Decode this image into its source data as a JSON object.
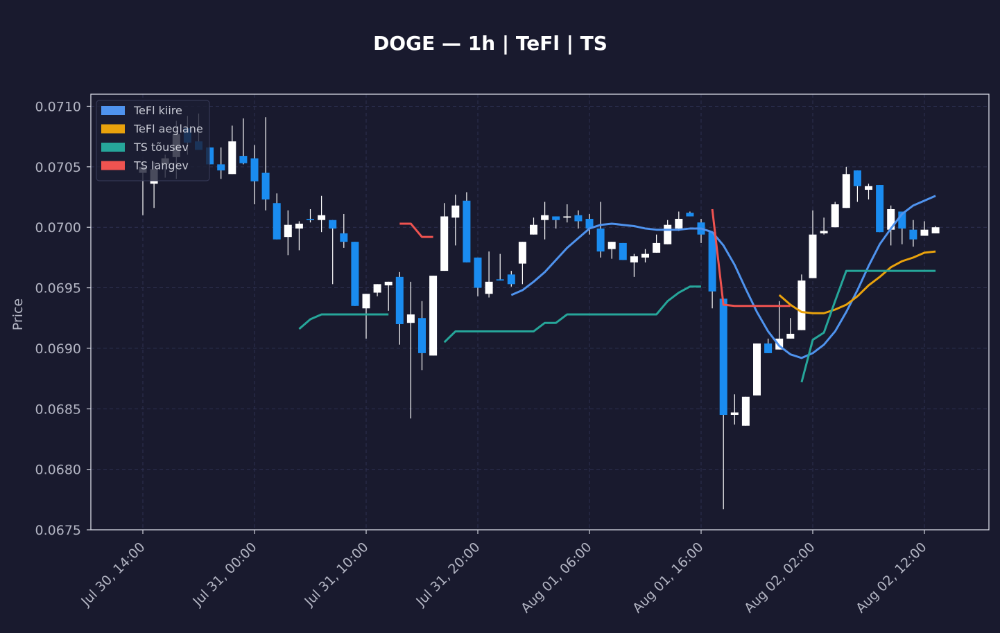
{
  "chart_data": {
    "type": "candlestick",
    "title": "DOGE — 1h  |  TeFl  |  TS",
    "ylabel": "Price",
    "categories": [
      "Jul 30, 14:00",
      null,
      null,
      null,
      null,
      null,
      null,
      null,
      null,
      null,
      "Jul 31, 00:00",
      null,
      null,
      null,
      null,
      null,
      null,
      null,
      null,
      null,
      "Jul 31, 10:00",
      null,
      null,
      null,
      null,
      null,
      null,
      null,
      null,
      null,
      "Jul 31, 20:00",
      null,
      null,
      null,
      null,
      null,
      null,
      null,
      null,
      null,
      "Aug 01, 06:00",
      null,
      null,
      null,
      null,
      null,
      null,
      null,
      null,
      null,
      "Aug 01, 16:00",
      null,
      null,
      null,
      null,
      null,
      null,
      null,
      null,
      null,
      "Aug 02, 02:00",
      null,
      null,
      null,
      null,
      null,
      null,
      null,
      null,
      null,
      "Aug 02, 12:00",
      null
    ],
    "open": [
      0.07045,
      0.07036,
      0.07052,
      0.07058,
      0.07082,
      0.07071,
      0.07066,
      0.07052,
      0.07044,
      0.07059,
      0.07057,
      0.07045,
      0.0702,
      0.06992,
      0.06999,
      0.07007,
      0.07006,
      0.07006,
      0.06995,
      0.06988,
      0.06933,
      0.06946,
      0.06952,
      0.06959,
      0.06921,
      0.06925,
      0.06894,
      0.06964,
      0.07008,
      0.07022,
      0.06975,
      0.06945,
      0.06957,
      0.06961,
      0.0697,
      0.06994,
      0.07006,
      0.07009,
      0.07008,
      0.0701,
      0.07007,
      0.06999,
      0.06982,
      0.06987,
      0.06971,
      0.06975,
      0.06979,
      0.06986,
      0.06999,
      0.07012,
      0.07004,
      0.06996,
      0.06941,
      0.06845,
      0.06836,
      0.06861,
      0.06904,
      0.06899,
      0.06908,
      0.06915,
      0.06958,
      0.06995,
      0.07,
      0.07016,
      0.07047,
      0.07031,
      0.07035,
      0.06998,
      0.07013,
      0.06998,
      0.06993,
      0.06995
    ],
    "high": [
      0.07054,
      0.07054,
      0.0706,
      0.07088,
      0.07092,
      0.07094,
      0.07066,
      0.07066,
      0.07084,
      0.0709,
      0.07068,
      0.07091,
      0.07028,
      0.07014,
      0.07005,
      0.07015,
      0.07026,
      0.07006,
      0.07011,
      0.06988,
      0.06945,
      0.06953,
      0.06955,
      0.06963,
      0.06955,
      0.06939,
      0.0696,
      0.0702,
      0.07027,
      0.07029,
      0.06975,
      0.0698,
      0.06978,
      0.06964,
      0.06988,
      0.07008,
      0.07021,
      0.07009,
      0.07019,
      0.07014,
      0.07011,
      0.07021,
      0.06988,
      0.06987,
      0.06978,
      0.06982,
      0.06994,
      0.07006,
      0.07013,
      0.07013,
      0.07007,
      0.06996,
      0.06941,
      0.06862,
      0.0686,
      0.06904,
      0.06908,
      0.06939,
      0.06925,
      0.06961,
      0.07014,
      0.07008,
      0.07021,
      0.0705,
      0.07047,
      0.07036,
      0.07035,
      0.07018,
      0.07013,
      0.07006,
      0.07005,
      0.07001
    ],
    "low": [
      0.0701,
      0.07016,
      0.07041,
      0.0704,
      0.0706,
      0.07065,
      0.07052,
      0.0704,
      0.07044,
      0.07052,
      0.07019,
      0.07014,
      0.0699,
      0.06977,
      0.06981,
      0.07004,
      0.06996,
      0.06953,
      0.06983,
      0.06935,
      0.06908,
      0.06943,
      0.06931,
      0.06903,
      0.06842,
      0.06882,
      0.06894,
      0.06964,
      0.06985,
      0.06971,
      0.06943,
      0.06942,
      0.06956,
      0.06951,
      0.06953,
      0.06994,
      0.0699,
      0.06999,
      0.07004,
      0.06999,
      0.06994,
      0.06975,
      0.06974,
      0.06973,
      0.06959,
      0.06971,
      0.06979,
      0.06986,
      0.06997,
      0.07009,
      0.06987,
      0.06933,
      0.06767,
      0.06837,
      0.06836,
      0.06861,
      0.06896,
      0.06899,
      0.06908,
      0.06915,
      0.06958,
      0.06994,
      0.07,
      0.07016,
      0.07021,
      0.07023,
      0.06996,
      0.06985,
      0.06986,
      0.06984,
      0.06993,
      0.06995
    ],
    "close": [
      0.0705,
      0.07048,
      0.07057,
      0.07077,
      0.0707,
      0.07064,
      0.07052,
      0.07047,
      0.07071,
      0.07053,
      0.07038,
      0.07023,
      0.0699,
      0.07002,
      0.07003,
      0.07006,
      0.0701,
      0.06999,
      0.06988,
      0.06935,
      0.06945,
      0.06953,
      0.06955,
      0.0692,
      0.06928,
      0.06896,
      0.0696,
      0.07009,
      0.07018,
      0.06971,
      0.0695,
      0.06955,
      0.06956,
      0.06953,
      0.06988,
      0.07002,
      0.0701,
      0.07006,
      0.07009,
      0.07005,
      0.06999,
      0.0698,
      0.06988,
      0.06973,
      0.06976,
      0.06978,
      0.06987,
      0.07002,
      0.07007,
      0.07009,
      0.06994,
      0.06947,
      0.06845,
      0.06847,
      0.0686,
      0.06904,
      0.06896,
      0.06908,
      0.06912,
      0.06956,
      0.06994,
      0.06997,
      0.07019,
      0.07044,
      0.07034,
      0.07034,
      0.06996,
      0.07015,
      0.06999,
      0.0699,
      0.06998,
      0.07
    ],
    "up_color": "#ffffff",
    "down_color": "#1a8cf0",
    "wick_color": "#ffffff",
    "series": [
      {
        "name": "TeFl kiire",
        "color": "#4f93ee",
        "values": [
          null,
          null,
          null,
          null,
          null,
          null,
          null,
          null,
          null,
          null,
          null,
          null,
          null,
          null,
          null,
          null,
          null,
          null,
          null,
          null,
          null,
          null,
          null,
          null,
          null,
          null,
          null,
          null,
          null,
          null,
          null,
          null,
          null,
          0.06944,
          0.06948,
          0.06955,
          0.06963,
          0.06973,
          0.06983,
          0.06991,
          0.06999,
          0.07002,
          0.07003,
          0.07002,
          0.07001,
          0.06999,
          0.06998,
          0.06998,
          0.06998,
          0.06999,
          0.06999,
          0.06996,
          0.06985,
          0.06969,
          0.06949,
          0.0693,
          0.06914,
          0.06902,
          0.06895,
          0.06892,
          0.06896,
          0.06903,
          0.06914,
          0.0693,
          0.06948,
          0.06968,
          0.06986,
          0.06999,
          0.07011,
          0.07018,
          0.07022,
          0.07026
        ]
      },
      {
        "name": "TeFl aeglane",
        "color": "#e9a20c",
        "values": [
          null,
          null,
          null,
          null,
          null,
          null,
          null,
          null,
          null,
          null,
          null,
          null,
          null,
          null,
          null,
          null,
          null,
          null,
          null,
          null,
          null,
          null,
          null,
          null,
          null,
          null,
          null,
          null,
          null,
          null,
          null,
          null,
          null,
          null,
          null,
          null,
          null,
          null,
          null,
          null,
          null,
          null,
          null,
          null,
          null,
          null,
          null,
          null,
          null,
          null,
          null,
          null,
          null,
          null,
          null,
          null,
          null,
          0.06944,
          0.06936,
          0.0693,
          0.06929,
          0.06929,
          0.06932,
          0.06936,
          0.06943,
          0.06952,
          0.06959,
          0.06967,
          0.06972,
          0.06975,
          0.06979,
          0.0698
        ]
      },
      {
        "name": "TS tõusev",
        "color": "#26a69a",
        "values": [
          null,
          null,
          null,
          null,
          null,
          null,
          null,
          null,
          null,
          null,
          null,
          null,
          null,
          null,
          0.06916,
          0.06924,
          0.06928,
          0.06928,
          0.06928,
          0.06928,
          0.06928,
          0.06928,
          0.06928,
          null,
          null,
          null,
          null,
          0.06905,
          0.06914,
          0.06914,
          0.06914,
          0.06914,
          0.06914,
          0.06914,
          0.06914,
          0.06914,
          0.06921,
          0.06921,
          0.06928,
          0.06928,
          0.06928,
          0.06928,
          0.06928,
          0.06928,
          0.06928,
          0.06928,
          0.06928,
          0.06939,
          0.06946,
          0.06951,
          0.06951,
          null,
          null,
          null,
          null,
          null,
          null,
          null,
          null,
          0.06872,
          0.06907,
          0.06913,
          0.06939,
          0.06964,
          0.06964,
          0.06964,
          0.06964,
          0.06964,
          0.06964,
          0.06964,
          0.06964,
          0.06964
        ]
      },
      {
        "name": "TS langev",
        "color": "#ef5350",
        "values": [
          null,
          null,
          null,
          null,
          null,
          null,
          null,
          null,
          null,
          null,
          null,
          null,
          null,
          null,
          null,
          null,
          null,
          null,
          null,
          null,
          null,
          null,
          null,
          0.07003,
          0.07003,
          0.06992,
          0.06992,
          null,
          null,
          null,
          null,
          null,
          null,
          null,
          null,
          null,
          null,
          null,
          null,
          null,
          null,
          null,
          null,
          null,
          null,
          null,
          null,
          null,
          null,
          null,
          null,
          0.07015,
          0.06936,
          0.06935,
          0.06935,
          0.06935,
          0.06935,
          0.06935,
          0.06935,
          null,
          null,
          null,
          null,
          null,
          null,
          null,
          null,
          null,
          null,
          null,
          null,
          null
        ]
      }
    ],
    "ylim": [
      0.0675,
      0.0711
    ],
    "yticks": [
      0.0675,
      {
        "value": 0.068,
        "label": "0.0680"
      },
      0.0685,
      {
        "value": 0.069,
        "label": "0.0690"
      },
      0.0695,
      {
        "value": 0.07,
        "label": "0.0700"
      },
      0.0705,
      {
        "value": 0.071,
        "label": "0.0710"
      }
    ],
    "grid": true,
    "legend": "upper left"
  }
}
